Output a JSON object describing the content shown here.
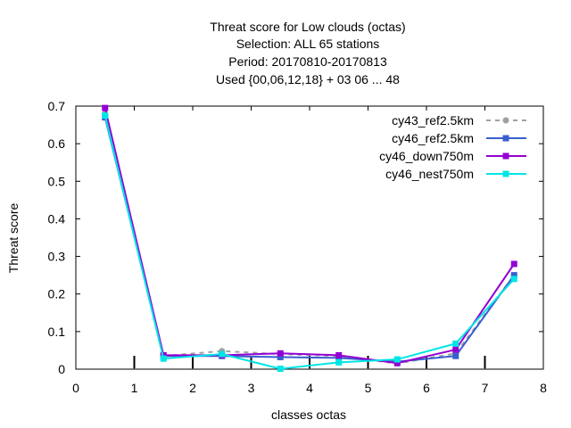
{
  "chart_data": {
    "type": "line",
    "title": {
      "line1": "Threat score  for Low clouds (octas)",
      "line2": "Selection: ALL     65 stations",
      "line3": "Period: 20170810-20170813",
      "line4": "Used {00,06,12,18} + 03 06 ... 48"
    },
    "xlabel": "classes octas",
    "ylabel": "Threat score",
    "xlim": [
      0,
      8
    ],
    "ylim": [
      0,
      0.7
    ],
    "x_ticks": [
      "0",
      "1",
      "2",
      "3",
      "4",
      "5",
      "6",
      "7",
      "8"
    ],
    "y_ticks": [
      "0",
      "0.1",
      "0.2",
      "0.3",
      "0.4",
      "0.5",
      "0.6",
      "0.7"
    ],
    "x": [
      0.5,
      1.5,
      2.5,
      3.5,
      4.5,
      5.5,
      6.5,
      7.5
    ],
    "legend_position": "top-right",
    "series": [
      {
        "name": "cy43_ref2.5km",
        "color": "#a0a0a0",
        "dashed": true,
        "marker": "circle",
        "values": [
          0.68,
          0.035,
          0.048,
          0.04,
          0.035,
          0.015,
          0.042,
          0.25
        ]
      },
      {
        "name": "cy46_ref2.5km",
        "color": "#3a5fcd",
        "dashed": false,
        "marker": "square",
        "values": [
          0.67,
          0.035,
          0.035,
          0.032,
          0.03,
          0.02,
          0.035,
          0.25
        ]
      },
      {
        "name": "cy46_down750m",
        "color": "#9400d3",
        "dashed": false,
        "marker": "square",
        "values": [
          0.695,
          0.037,
          0.037,
          0.042,
          0.037,
          0.016,
          0.052,
          0.28
        ]
      },
      {
        "name": "cy46_nest750m",
        "color": "#00e5e5",
        "dashed": false,
        "marker": "square",
        "values": [
          0.675,
          0.028,
          0.04,
          0.001,
          0.018,
          0.026,
          0.068,
          0.24
        ]
      }
    ]
  }
}
